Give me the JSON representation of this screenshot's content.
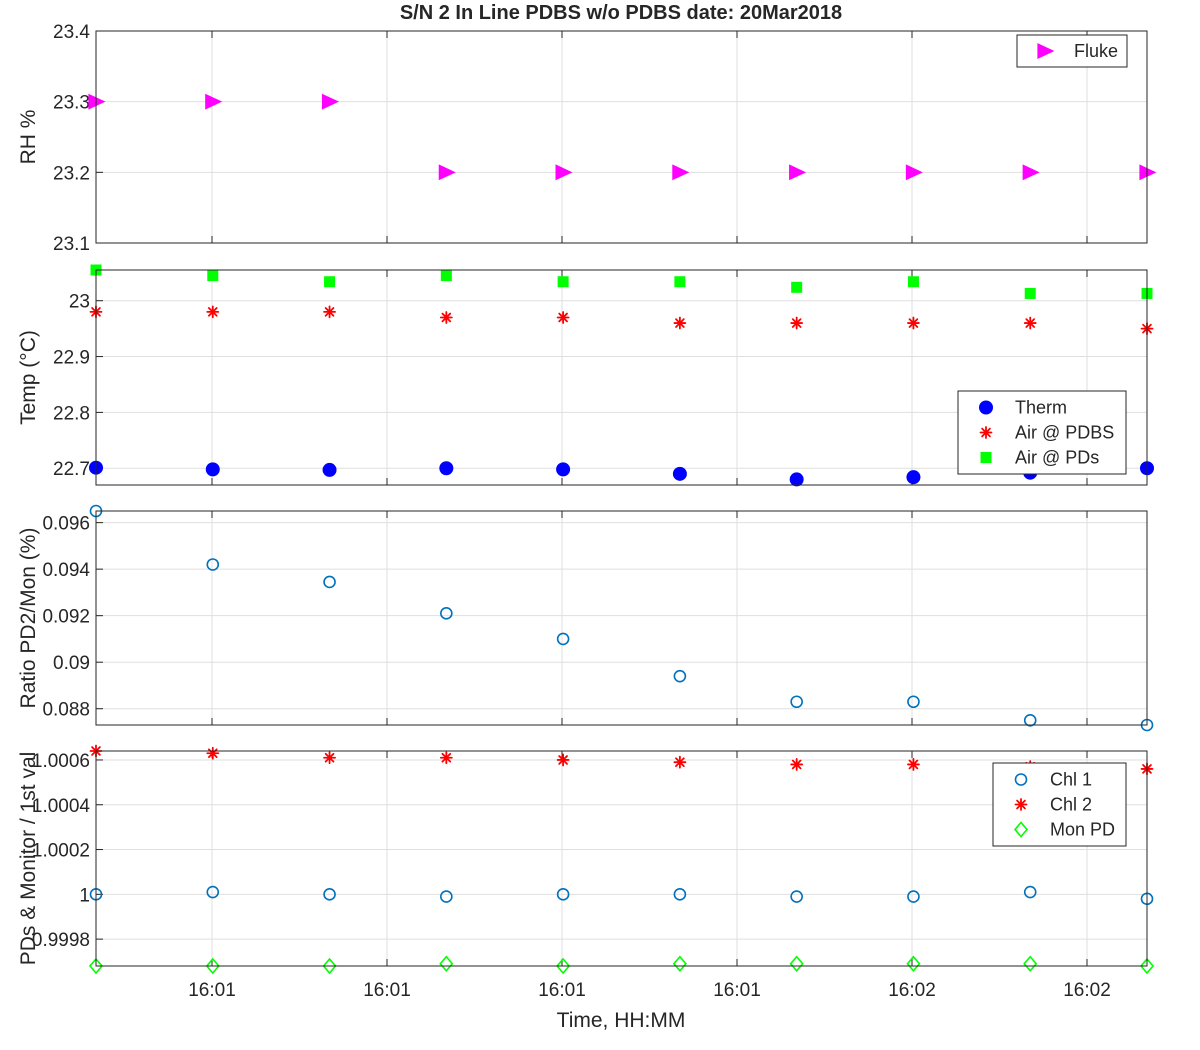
{
  "figure": {
    "title": "S/N 2 In Line PDBS w/o PDBS date: 20Mar2018",
    "xlabel": "Time, HH:MM"
  },
  "colors": {
    "magenta": "#ff00ff",
    "blue": "#0000ff",
    "red": "#ff0000",
    "green": "#00ff00",
    "matlab_blue": "#0072bd",
    "axis": "#262626",
    "grid": "#dfdfdf"
  },
  "chart_data": [
    {
      "type": "scatter",
      "ylabel": "RH %",
      "ylim": [
        23.1,
        23.4
      ],
      "yticks": [
        23.1,
        23.2,
        23.3,
        23.4
      ],
      "ytick_labels": [
        "23.1",
        "23.2",
        "23.3",
        "23.4"
      ],
      "x": [
        1,
        2,
        3,
        4,
        5,
        6,
        7,
        8,
        9,
        10
      ],
      "grid": true,
      "legend_position": "top-right",
      "series": [
        {
          "name": "Fluke",
          "marker": "triangle-right",
          "color": "#ff00ff",
          "filled": true,
          "values": [
            23.3,
            23.3,
            23.3,
            23.2,
            23.2,
            23.2,
            23.2,
            23.2,
            23.2,
            23.2
          ]
        }
      ]
    },
    {
      "type": "scatter",
      "ylabel": "Temp (°C)",
      "ylim": [
        22.67,
        23.055
      ],
      "yticks": [
        22.7,
        22.8,
        22.9,
        23
      ],
      "ytick_labels": [
        "22.7",
        "22.8",
        "22.9",
        "23"
      ],
      "x": [
        1,
        2,
        3,
        4,
        5,
        6,
        7,
        8,
        9,
        10
      ],
      "grid": true,
      "legend_position": "lower-right",
      "series": [
        {
          "name": "Therm",
          "marker": "circle",
          "color": "#0000ff",
          "filled": true,
          "values": [
            22.701,
            22.698,
            22.697,
            22.7,
            22.698,
            22.69,
            22.68,
            22.684,
            22.692,
            22.7
          ]
        },
        {
          "name": "Air @ PDBS",
          "marker": "star",
          "color": "#ff0000",
          "filled": false,
          "values": [
            22.98,
            22.98,
            22.98,
            22.97,
            22.97,
            22.96,
            22.96,
            22.96,
            22.96,
            22.95
          ]
        },
        {
          "name": "Air @ PDs",
          "marker": "square",
          "color": "#00ff00",
          "filled": true,
          "values": [
            23.055,
            23.045,
            23.034,
            23.045,
            23.034,
            23.034,
            23.024,
            23.034,
            23.013,
            23.013
          ]
        }
      ]
    },
    {
      "type": "scatter",
      "ylabel": "Ratio PD2/Mon (%)",
      "ylim": [
        0.0873,
        0.0965
      ],
      "yticks": [
        0.088,
        0.09,
        0.092,
        0.094,
        0.096
      ],
      "ytick_labels": [
        "0.088",
        "0.09",
        "0.092",
        "0.094",
        "0.096"
      ],
      "x": [
        1,
        2,
        3,
        4,
        5,
        6,
        7,
        8,
        9,
        10
      ],
      "grid": true,
      "series": [
        {
          "marker": "circle",
          "color": "#0072bd",
          "filled": false,
          "values": [
            0.0965,
            0.0942,
            0.09345,
            0.0921,
            0.091,
            0.0894,
            0.0883,
            0.0883,
            0.0875,
            0.0873
          ]
        }
      ]
    },
    {
      "type": "scatter",
      "ylabel": "PDs & Monitor / 1st val",
      "ylim": [
        0.99968,
        1.00064
      ],
      "yticks": [
        0.9998,
        1,
        1.0002,
        1.0004,
        1.0006
      ],
      "ytick_labels": [
        "0.9998",
        "1",
        "1.0002",
        "1.0004",
        "1.0006"
      ],
      "x": [
        1,
        2,
        3,
        4,
        5,
        6,
        7,
        8,
        9,
        10
      ],
      "xtick_labels": [
        "16:01",
        "16:01",
        "16:01",
        "16:01",
        "16:02",
        "16:02"
      ],
      "grid": true,
      "legend_position": "top-right",
      "series": [
        {
          "name": "Chl 1",
          "marker": "circle",
          "color": "#0072bd",
          "filled": false,
          "values": [
            1.0,
            1.00001,
            1.0,
            0.99999,
            1.0,
            1.0,
            0.99999,
            0.99999,
            1.00001,
            0.99998
          ]
        },
        {
          "name": "Chl 2",
          "marker": "star",
          "color": "#ff0000",
          "filled": false,
          "values": [
            1.00064,
            1.00063,
            1.00061,
            1.00061,
            1.0006,
            1.00059,
            1.00058,
            1.00058,
            1.00057,
            1.00056
          ]
        },
        {
          "name": "Mon PD",
          "marker": "diamond",
          "color": "#00ff00",
          "filled": false,
          "values": [
            0.99968,
            0.99968,
            0.99968,
            0.99969,
            0.99968,
            0.99969,
            0.99969,
            0.99969,
            0.99969,
            0.99968
          ]
        }
      ]
    }
  ]
}
